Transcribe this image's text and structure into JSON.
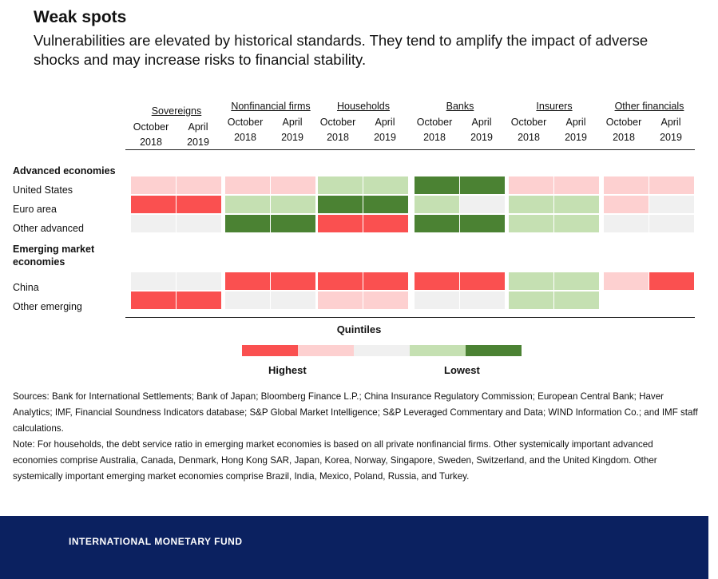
{
  "header": {
    "title": "Weak spots",
    "subtitle": "Vulnerabilities are elevated by historical standards. They tend to amplify the impact of adverse shocks and may increase risks to financial stability."
  },
  "chart_data": {
    "type": "heatmap",
    "sectors": [
      "Sovereigns",
      "Nonfinancial firms",
      "Households",
      "Banks",
      "Insurers",
      "Other financials"
    ],
    "periods": [
      {
        "month": "October",
        "year": "2018"
      },
      {
        "month": "April",
        "year": "2019"
      }
    ],
    "group_labels": [
      "Advanced economies",
      "Emerging market economies"
    ],
    "rows": [
      {
        "label": "United States",
        "values": [
          2,
          2,
          2,
          2,
          4,
          4,
          5,
          5,
          2,
          2,
          2,
          2
        ]
      },
      {
        "label": "Euro area",
        "values": [
          1,
          1,
          4,
          4,
          5,
          5,
          4,
          3,
          4,
          4,
          2,
          3
        ]
      },
      {
        "label": "Other advanced",
        "values": [
          3,
          3,
          5,
          5,
          1,
          1,
          5,
          5,
          4,
          4,
          3,
          3
        ]
      },
      {
        "label": "China",
        "values": [
          3,
          3,
          1,
          1,
          1,
          1,
          1,
          1,
          4,
          4,
          2,
          1
        ]
      },
      {
        "label": "Other emerging",
        "values": [
          1,
          1,
          3,
          3,
          2,
          2,
          3,
          3,
          4,
          4,
          null,
          null
        ]
      }
    ],
    "legend": {
      "title": "Quintiles",
      "high_label": "Highest",
      "low_label": "Lowest",
      "colors": [
        "#fa5050",
        "#fdd0d0",
        "#f0f0f0",
        "#c5e0b2",
        "#4b8233"
      ]
    }
  },
  "notes": {
    "sources": "Sources: Bank for International Settlements; Bank of Japan; Bloomberg Finance L.P.; China Insurance Regulatory Commission; European Central Bank; Haver Analytics; IMF, Financial Soundness Indicators database; S&P Global Market Intelligence; S&P Leveraged Commentary and Data; WIND Information Co.; and IMF staff calculations.",
    "note": "Note: For households, the debt service ratio in emerging market economies is based on all private nonfinancial firms. Other systemically important advanced economies comprise Australia, Canada, Denmark, Hong Kong SAR, Japan, Korea, Norway, Singapore, Sweden, Switzerland, and the United Kingdom. Other systemically important emerging market economies comprise Brazil, India, Mexico, Poland, Russia, and Turkey."
  },
  "footer": {
    "text": "INTERNATIONAL MONETARY FUND"
  }
}
